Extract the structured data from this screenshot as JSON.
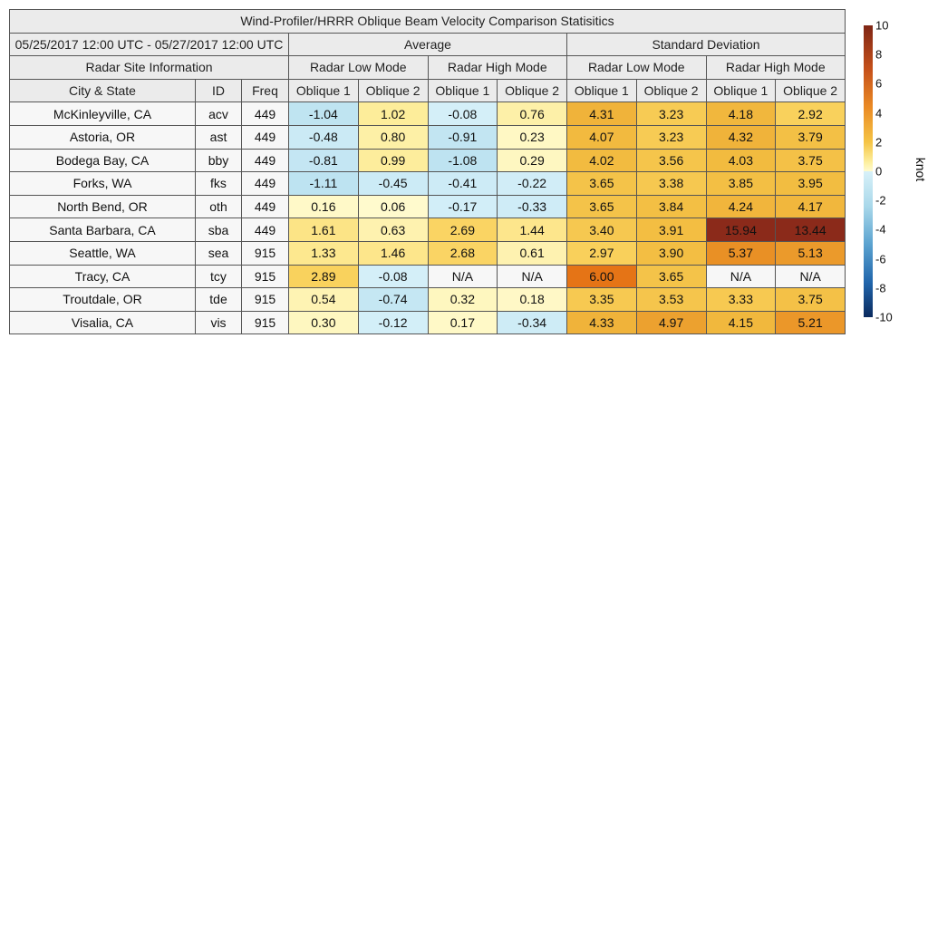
{
  "chart_data": {
    "type": "heatmap",
    "title": "Wind-Profiler/HRRR Oblique Beam Velocity Comparison Statisitics",
    "date_range": "05/25/2017 12:00 UTC - 05/27/2017 12:00 UTC",
    "groups": [
      "Average",
      "Standard Deviation"
    ],
    "info_header": "Radar Site Information",
    "modes": [
      "Radar Low Mode",
      "Radar High Mode",
      "Radar Low Mode",
      "Radar High Mode"
    ],
    "columns": [
      "City & State",
      "ID",
      "Freq",
      "Oblique 1",
      "Oblique 2",
      "Oblique 1",
      "Oblique 2",
      "Oblique 1",
      "Oblique 2",
      "Oblique 1",
      "Oblique 2"
    ],
    "rows": [
      {
        "city": "McKinleyville, CA",
        "id": "acv",
        "freq": "449",
        "values": [
          "-1.04",
          "1.02",
          "-0.08",
          "0.76",
          "4.31",
          "3.23",
          "4.18",
          "2.92"
        ]
      },
      {
        "city": "Astoria, OR",
        "id": "ast",
        "freq": "449",
        "values": [
          "-0.48",
          "0.80",
          "-0.91",
          "0.23",
          "4.07",
          "3.23",
          "4.32",
          "3.79"
        ]
      },
      {
        "city": "Bodega Bay, CA",
        "id": "bby",
        "freq": "449",
        "values": [
          "-0.81",
          "0.99",
          "-1.08",
          "0.29",
          "4.02",
          "3.56",
          "4.03",
          "3.75"
        ]
      },
      {
        "city": "Forks, WA",
        "id": "fks",
        "freq": "449",
        "values": [
          "-1.11",
          "-0.45",
          "-0.41",
          "-0.22",
          "3.65",
          "3.38",
          "3.85",
          "3.95"
        ]
      },
      {
        "city": "North Bend, OR",
        "id": "oth",
        "freq": "449",
        "values": [
          "0.16",
          "0.06",
          "-0.17",
          "-0.33",
          "3.65",
          "3.84",
          "4.24",
          "4.17"
        ]
      },
      {
        "city": "Santa Barbara, CA",
        "id": "sba",
        "freq": "449",
        "values": [
          "1.61",
          "0.63",
          "2.69",
          "1.44",
          "3.40",
          "3.91",
          "15.94",
          "13.44"
        ]
      },
      {
        "city": "Seattle, WA",
        "id": "sea",
        "freq": "915",
        "values": [
          "1.33",
          "1.46",
          "2.68",
          "0.61",
          "2.97",
          "3.90",
          "5.37",
          "5.13"
        ]
      },
      {
        "city": "Tracy, CA",
        "id": "tcy",
        "freq": "915",
        "values": [
          "2.89",
          "-0.08",
          "N/A",
          "N/A",
          "6.00",
          "3.65",
          "N/A",
          "N/A"
        ]
      },
      {
        "city": "Troutdale, OR",
        "id": "tde",
        "freq": "915",
        "values": [
          "0.54",
          "-0.74",
          "0.32",
          "0.18",
          "3.35",
          "3.53",
          "3.33",
          "3.75"
        ]
      },
      {
        "city": "Visalia, CA",
        "id": "vis",
        "freq": "915",
        "values": [
          "0.30",
          "-0.12",
          "0.17",
          "-0.34",
          "4.33",
          "4.97",
          "4.15",
          "5.21"
        ]
      }
    ],
    "colorbar": {
      "label": "knot",
      "range": [
        -10,
        10
      ],
      "ticks": [
        "10",
        "8",
        "6",
        "4",
        "2",
        "0",
        "-2",
        "-4",
        "-6",
        "-8",
        "-10"
      ],
      "colormap": "diverging blue-white-yellow-orange-brown"
    },
    "na_color": "#f7f7f7"
  }
}
